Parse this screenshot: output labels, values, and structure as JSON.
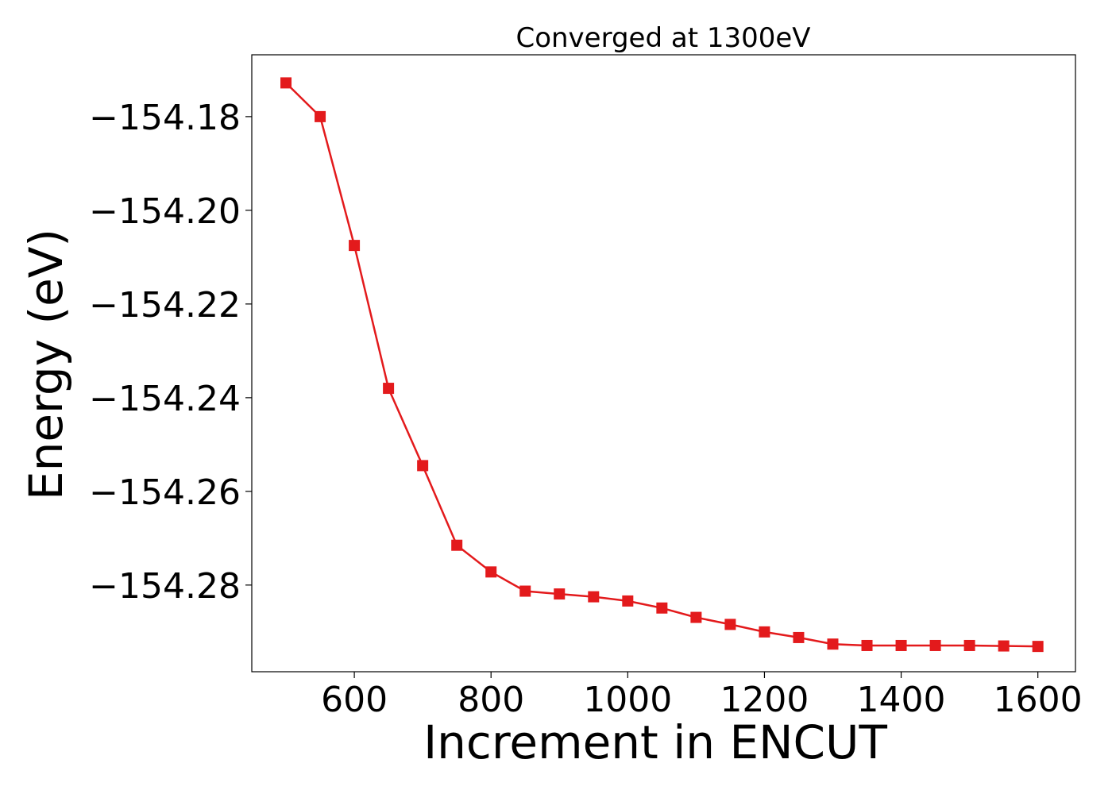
{
  "chart_data": {
    "type": "line",
    "title": "Converged at 1300eV",
    "xlabel": "Increment in ENCUT",
    "ylabel": "Energy (eV)",
    "xlim": [
      450,
      1655
    ],
    "ylim": [
      -154.2985,
      -154.1668
    ],
    "x_ticks": [
      600,
      800,
      1000,
      1200,
      1400,
      1600
    ],
    "x_tick_labels": [
      "600",
      "800",
      "1000",
      "1200",
      "1400",
      "1600"
    ],
    "y_ticks": [
      -154.18,
      -154.2,
      -154.22,
      -154.24,
      -154.26,
      -154.28
    ],
    "y_tick_labels": [
      "−154.18",
      "−154.20",
      "−154.22",
      "−154.24",
      "−154.26",
      "−154.28"
    ],
    "grid": false,
    "marker": "square",
    "color": "#e31a1c",
    "series": [
      {
        "x": [
          500,
          550,
          600,
          650,
          700,
          750,
          800,
          850,
          900,
          950,
          1000,
          1050,
          1100,
          1150,
          1200,
          1250,
          1300,
          1350,
          1400,
          1450,
          1500,
          1550,
          1600
        ],
        "values": [
          -154.1728,
          -154.18,
          -154.2075,
          -154.238,
          -154.2545,
          -154.2715,
          -154.2772,
          -154.2813,
          -154.2819,
          -154.2825,
          -154.2834,
          -154.2849,
          -154.2869,
          -154.2884,
          -154.29,
          -154.2912,
          -154.2926,
          -154.2929,
          -154.2929,
          -154.2929,
          -154.2929,
          -154.293,
          -154.2931
        ]
      }
    ]
  }
}
